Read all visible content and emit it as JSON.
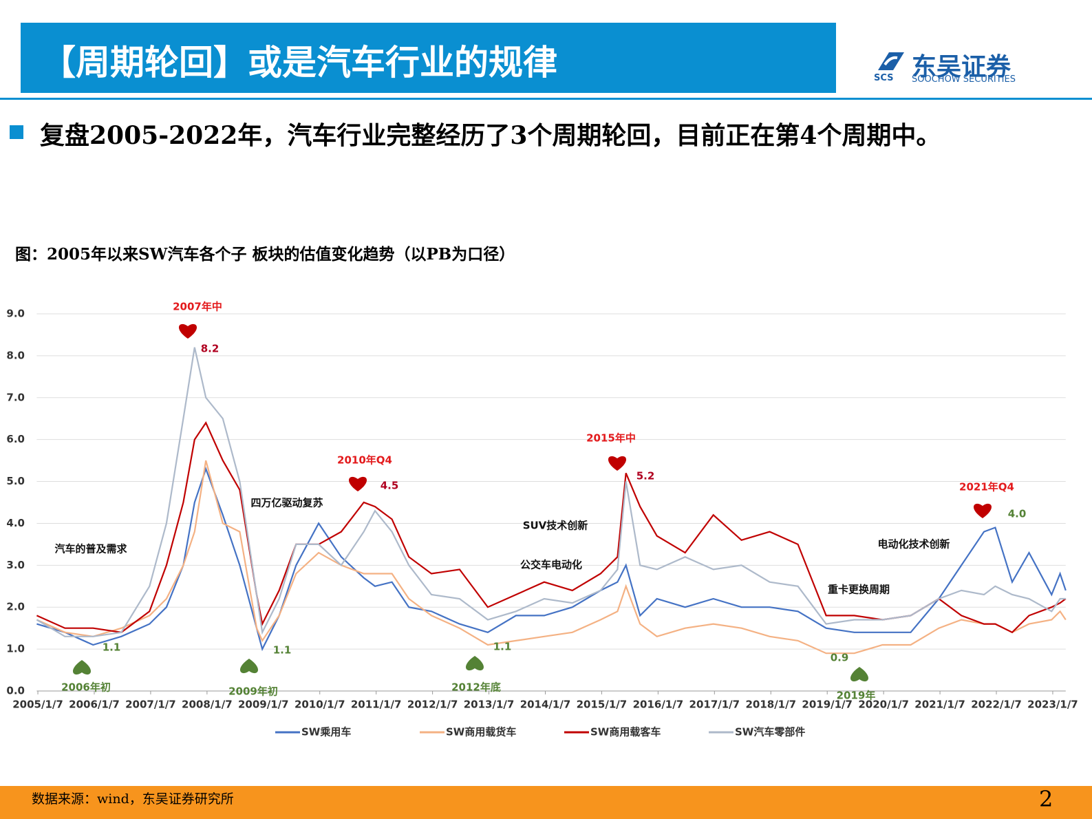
{
  "header": {
    "title": "【周期轮回】或是汽车行业的规律",
    "logo_cn": "东吴证券",
    "logo_abbr": "SCS",
    "logo_en": "SOOCHOW SECURITIES"
  },
  "bullet": "复盘2005-2022年，汽车行业完整经历了3个周期轮回，目前正在第4个周期中。",
  "chart_data": {
    "type": "line",
    "title": "图：2005年以来SW汽车各个子 板块的估值变化趋势（以PB为口径）",
    "x": [
      2005.0,
      2005.5,
      2006.0,
      2006.5,
      2007.0,
      2007.3,
      2007.6,
      2007.8,
      2008.0,
      2008.3,
      2008.6,
      2008.9,
      2009.0,
      2009.3,
      2009.6,
      2010.0,
      2010.4,
      2010.8,
      2011.0,
      2011.3,
      2011.6,
      2012.0,
      2012.5,
      2013.0,
      2013.5,
      2014.0,
      2014.5,
      2015.0,
      2015.3,
      2015.45,
      2015.7,
      2016.0,
      2016.5,
      2017.0,
      2017.5,
      2018.0,
      2018.5,
      2019.0,
      2019.5,
      2020.0,
      2020.5,
      2021.0,
      2021.4,
      2021.8,
      2022.0,
      2022.3,
      2022.6,
      2023.0,
      2023.15,
      2023.25
    ],
    "series": [
      {
        "name": "SW乘用车",
        "color": "#4472c4",
        "values": [
          1.6,
          1.4,
          1.1,
          1.3,
          1.6,
          2.0,
          3.0,
          4.5,
          5.3,
          4.2,
          3.0,
          1.5,
          1.0,
          1.8,
          3.0,
          4.0,
          3.2,
          2.7,
          2.5,
          2.6,
          2.0,
          1.9,
          1.6,
          1.4,
          1.8,
          1.8,
          2.0,
          2.4,
          2.6,
          3.0,
          1.8,
          2.2,
          2.0,
          2.2,
          2.0,
          2.0,
          1.9,
          1.5,
          1.4,
          1.4,
          1.4,
          2.2,
          3.0,
          3.8,
          3.9,
          2.6,
          3.3,
          2.3,
          2.8,
          2.4
        ]
      },
      {
        "name": "SW商用载货车",
        "color": "#f4b183",
        "values": [
          1.7,
          1.4,
          1.3,
          1.5,
          1.8,
          2.2,
          3.0,
          3.8,
          5.5,
          4.0,
          3.8,
          1.5,
          1.2,
          1.8,
          2.8,
          3.3,
          3.0,
          2.8,
          2.8,
          2.8,
          2.2,
          1.8,
          1.5,
          1.1,
          1.2,
          1.3,
          1.4,
          1.7,
          1.9,
          2.5,
          1.6,
          1.3,
          1.5,
          1.6,
          1.5,
          1.3,
          1.2,
          0.9,
          0.9,
          1.1,
          1.1,
          1.5,
          1.7,
          1.6,
          1.6,
          1.4,
          1.6,
          1.7,
          1.9,
          1.7
        ]
      },
      {
        "name": "SW商用载客车",
        "color": "#c00000",
        "values": [
          1.8,
          1.5,
          1.5,
          1.4,
          1.9,
          3.0,
          4.5,
          6.0,
          6.4,
          5.5,
          4.8,
          2.3,
          1.6,
          2.4,
          3.5,
          3.5,
          3.8,
          4.5,
          4.4,
          4.1,
          3.2,
          2.8,
          2.9,
          2.0,
          2.3,
          2.6,
          2.4,
          2.8,
          3.2,
          5.2,
          4.4,
          3.7,
          3.3,
          4.2,
          3.6,
          3.8,
          3.5,
          1.8,
          1.8,
          1.7,
          1.8,
          2.2,
          1.8,
          1.6,
          1.6,
          1.4,
          1.8,
          2.0,
          2.1,
          2.2
        ]
      },
      {
        "name": "SW汽车零部件",
        "color": "#adb9ca",
        "values": [
          1.7,
          1.3,
          1.3,
          1.4,
          2.5,
          4.0,
          6.5,
          8.2,
          7.0,
          6.5,
          5.0,
          2.3,
          1.4,
          2.2,
          3.5,
          3.5,
          3.0,
          3.8,
          4.3,
          3.8,
          3.0,
          2.3,
          2.2,
          1.7,
          1.9,
          2.2,
          2.1,
          2.4,
          2.9,
          5.0,
          3.0,
          2.9,
          3.2,
          2.9,
          3.0,
          2.6,
          2.5,
          1.6,
          1.7,
          1.7,
          1.8,
          2.2,
          2.4,
          2.3,
          2.5,
          2.3,
          2.2,
          1.9,
          2.2,
          2.2
        ]
      }
    ],
    "xlim": [
      2005,
      2023.25
    ],
    "xticks": [
      {
        "value": 2005.02,
        "label": "2005/1/7"
      },
      {
        "value": 2006.02,
        "label": "2006/1/7"
      },
      {
        "value": 2007.02,
        "label": "2007/1/7"
      },
      {
        "value": 2008.02,
        "label": "2008/1/7"
      },
      {
        "value": 2009.02,
        "label": "2009/1/7"
      },
      {
        "value": 2010.02,
        "label": "2010/1/7"
      },
      {
        "value": 2011.02,
        "label": "2011/1/7"
      },
      {
        "value": 2012.02,
        "label": "2012/1/7"
      },
      {
        "value": 2013.02,
        "label": "2013/1/7"
      },
      {
        "value": 2014.02,
        "label": "2014/1/7"
      },
      {
        "value": 2015.02,
        "label": "2015/1/7"
      },
      {
        "value": 2016.02,
        "label": "2016/1/7"
      },
      {
        "value": 2017.02,
        "label": "2017/1/7"
      },
      {
        "value": 2018.02,
        "label": "2018/1/7"
      },
      {
        "value": 2019.02,
        "label": "2019/1/7"
      },
      {
        "value": 2020.02,
        "label": "2020/1/7"
      },
      {
        "value": 2021.02,
        "label": "2021/1/7"
      },
      {
        "value": 2022.02,
        "label": "2022/1/7"
      },
      {
        "value": 2023.02,
        "label": "2023/1/7"
      }
    ],
    "ylim": [
      0,
      9
    ],
    "yticks": [
      {
        "value": 0,
        "label": "0.0"
      },
      {
        "value": 1,
        "label": "1.0"
      },
      {
        "value": 2,
        "label": "2.0"
      },
      {
        "value": 3,
        "label": "3.0"
      },
      {
        "value": 4,
        "label": "4.0"
      },
      {
        "value": 5,
        "label": "5.0"
      },
      {
        "value": 6,
        "label": "6.0"
      },
      {
        "value": 7,
        "label": "7.0"
      },
      {
        "value": 8,
        "label": "8.0"
      },
      {
        "value": 9,
        "label": "9.0"
      }
    ],
    "grid": true,
    "annotations": [
      "2007年中",
      "8.2",
      "2010年Q4",
      "4.5",
      "2015年中",
      "5.2",
      "2021年Q4",
      "4.0",
      "1.1",
      "2006年初",
      "1.1",
      "2009年初",
      "1.1",
      "2012年底",
      "0.9",
      "2019年",
      "汽车的普及需求",
      "四万亿驱动复苏",
      "SUV技术创新",
      "公交车电动化",
      "电动化技术创新",
      "重卡更换周期"
    ]
  },
  "source": "数据来源：wind，东吴证券研究所",
  "page": "2"
}
